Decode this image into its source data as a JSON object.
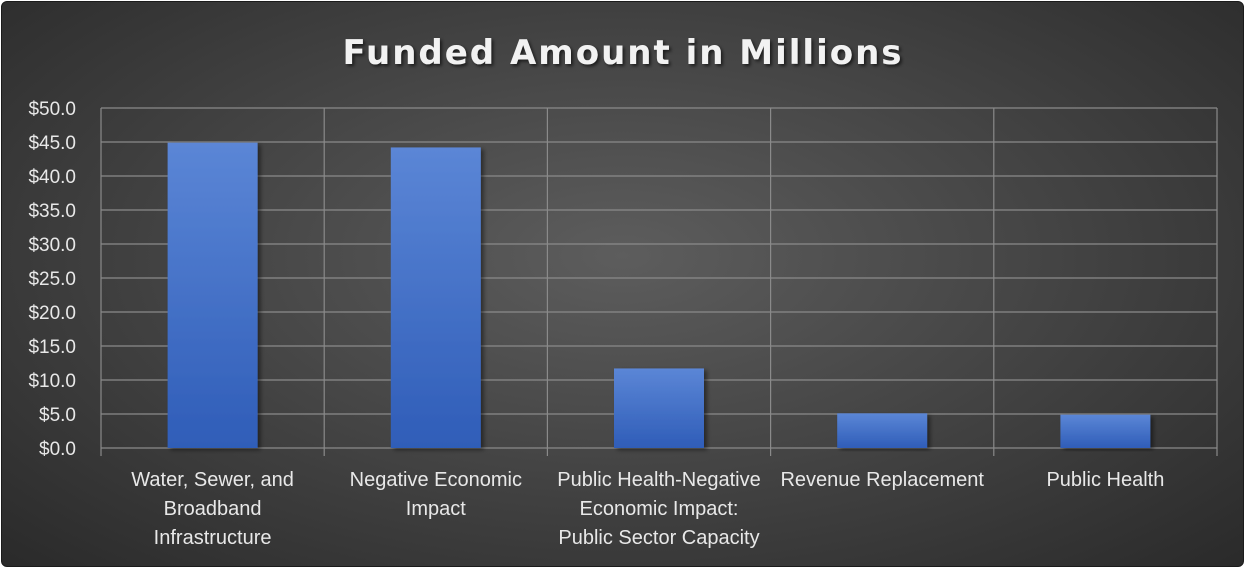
{
  "chart_data": {
    "type": "bar",
    "title": "Funded Amount in Millions",
    "xlabel": "",
    "ylabel": "",
    "categories": [
      "Water, Sewer, and Broadband Infrastructure",
      "Negative Economic Impact",
      "Public Health-Negative Economic Impact: Public Sector Capacity",
      "Revenue Replacement",
      "Public Health"
    ],
    "category_lines": [
      [
        "Water, Sewer, and",
        "Broadband",
        "Infrastructure"
      ],
      [
        "Negative Economic",
        "Impact"
      ],
      [
        "Public Health-Negative",
        "Economic Impact:",
        "Public Sector Capacity"
      ],
      [
        "Revenue Replacement"
      ],
      [
        "Public Health"
      ]
    ],
    "values": [
      44.9,
      44.2,
      11.7,
      5.1,
      4.9
    ],
    "ylim": [
      0,
      50
    ],
    "ytick_step": 5,
    "ytick_labels": [
      "$0.0",
      "$5.0",
      "$10.0",
      "$15.0",
      "$20.0",
      "$25.0",
      "$30.0",
      "$35.0",
      "$40.0",
      "$45.0",
      "$50.0"
    ],
    "grid": true,
    "legend": "none",
    "bar_color": "#4472c4",
    "bar_color_top": "#5b86d6",
    "bar_color_bottom": "#2f5db8",
    "background_color": "#404040",
    "text_color": "#e8e8e8",
    "grid_color": "#8a8a8a"
  }
}
